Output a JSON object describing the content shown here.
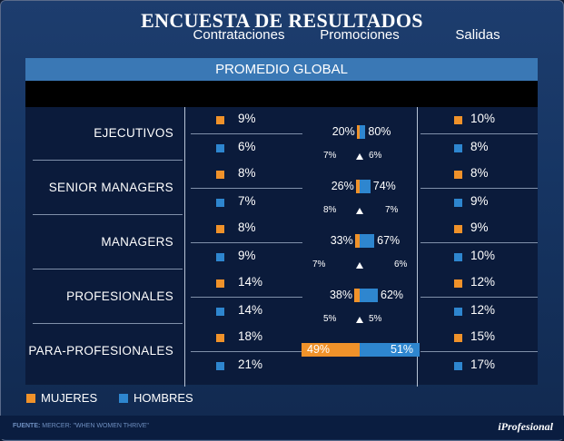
{
  "title": "ENCUESTA DE RESULTADOS",
  "panel_header": "PROMEDIO GLOBAL",
  "columns": {
    "contrataciones": "Contrataciones",
    "promociones": "Promociones",
    "salidas": "Salidas"
  },
  "colors": {
    "mujeres": "#f0922a",
    "hombres": "#2e86cf"
  },
  "rows": [
    {
      "label": "EJECUTIVOS",
      "contrataciones": {
        "mujeres": "9%",
        "hombres": "6%"
      },
      "promociones": {
        "mujeres": "20%",
        "hombres": "80%",
        "mujeres_pct": 20,
        "hombres_pct": 80,
        "change_left": "7%",
        "change_right": "6%"
      },
      "salidas": {
        "mujeres": "10%",
        "hombres": "8%"
      }
    },
    {
      "label": "SENIOR MANAGERS",
      "contrataciones": {
        "mujeres": "8%",
        "hombres": "7%"
      },
      "promociones": {
        "mujeres": "26%",
        "hombres": "74%",
        "mujeres_pct": 26,
        "hombres_pct": 74,
        "change_left": "8%",
        "change_right": "7%"
      },
      "salidas": {
        "mujeres": "8%",
        "hombres": "9%"
      }
    },
    {
      "label": "MANAGERS",
      "contrataciones": {
        "mujeres": "8%",
        "hombres": "9%"
      },
      "promociones": {
        "mujeres": "33%",
        "hombres": "67%",
        "mujeres_pct": 33,
        "hombres_pct": 67,
        "change_left": "7%",
        "change_right": "6%"
      },
      "salidas": {
        "mujeres": "9%",
        "hombres": "10%"
      }
    },
    {
      "label": "PROFESIONALES",
      "contrataciones": {
        "mujeres": "14%",
        "hombres": "14%"
      },
      "promociones": {
        "mujeres": "38%",
        "hombres": "62%",
        "mujeres_pct": 38,
        "hombres_pct": 62,
        "change_left": "5%",
        "change_right": "5%"
      },
      "salidas": {
        "mujeres": "12%",
        "hombres": "12%"
      }
    },
    {
      "label": "PARA-PROFESIONALES",
      "contrataciones": {
        "mujeres": "18%",
        "hombres": "21%"
      },
      "promociones": {
        "mujeres": "49%",
        "hombres": "51%",
        "mujeres_pct": 49,
        "hombres_pct": 51
      },
      "salidas": {
        "mujeres": "15%",
        "hombres": "17%"
      }
    }
  ],
  "legend": {
    "mujeres": "MUJERES",
    "hombres": "HOMBRES"
  },
  "source_label": "FUENTE:",
  "source_text": "MERCER: \"WHEN WOMEN THRIVE\"",
  "logo": "iProfesional"
}
